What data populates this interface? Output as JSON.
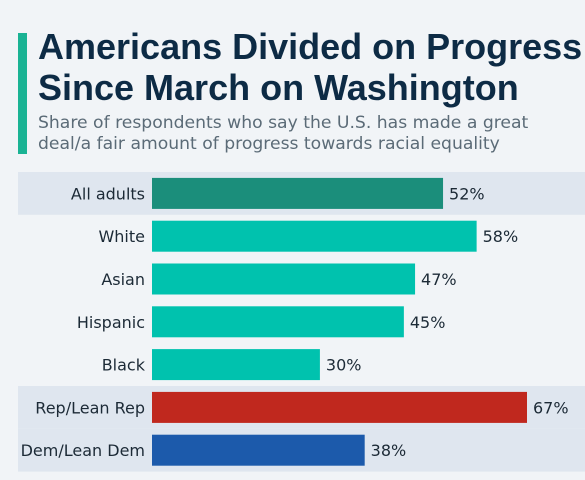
{
  "title": "Americans Divided on Progress Since March on Washington",
  "subtitle": "Share of respondents who say the U.S. has made a great deal/a fair amount of progress towards racial equality",
  "colors": {
    "accent": "#1ab394",
    "title": "#0d2b45",
    "highlight_band": "#dfe6ef",
    "all_adults": "#1b8e7b",
    "race": "#00c2ae",
    "rep": "#c0281e",
    "dem": "#1c5aab"
  },
  "chart_data": {
    "type": "bar",
    "orientation": "horizontal",
    "categories": [
      "All adults",
      "White",
      "Asian",
      "Hispanic",
      "Black",
      "Rep/Lean Rep",
      "Dem/Lean Dem"
    ],
    "values": [
      52,
      58,
      47,
      45,
      30,
      67,
      38
    ],
    "value_labels": [
      "52%",
      "58%",
      "47%",
      "45%",
      "30%",
      "67%",
      "38%"
    ],
    "unit": "%",
    "xlim": [
      0,
      67
    ],
    "grid": false,
    "legend": "none",
    "highlighted": [
      "All adults",
      "Rep/Lean Rep",
      "Dem/Lean Dem"
    ],
    "bar_colors": [
      "#1b8e7b",
      "#00c2ae",
      "#00c2ae",
      "#00c2ae",
      "#00c2ae",
      "#c0281e",
      "#1c5aab"
    ]
  }
}
